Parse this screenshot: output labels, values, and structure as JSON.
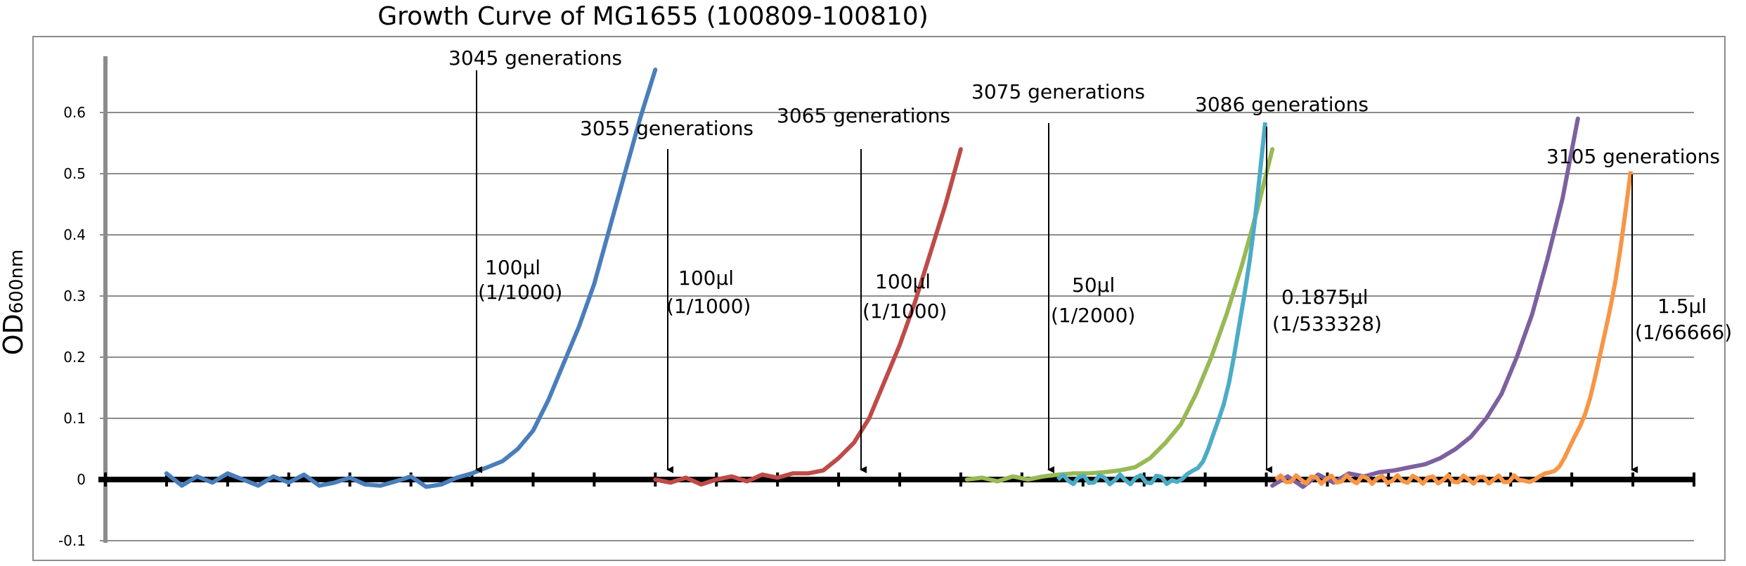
{
  "chart_data": {
    "type": "line",
    "title": "Growth Curve of MG1655 (100809-100810)",
    "ylabel_main": "OD",
    "ylabel_sub": "600nm",
    "ylim": [
      -0.1,
      0.7
    ],
    "yticks": [
      {
        "label": "0.6",
        "value": 0.6
      },
      {
        "label": "0.5",
        "value": 0.5
      },
      {
        "label": "0.4",
        "value": 0.4
      },
      {
        "label": "0.3",
        "value": 0.3
      },
      {
        "label": "0.2",
        "value": 0.2
      },
      {
        "label": "0.1",
        "value": 0.1
      },
      {
        "label": "0",
        "value": 0
      },
      {
        "label": "-0.1",
        "value": -0.1
      }
    ],
    "xlim": [
      0,
      52
    ],
    "x_tick_count": 26,
    "grid": true,
    "series": [
      {
        "color": "#4a7ebb",
        "x": [
          2,
          2.5,
          3,
          3.5,
          4,
          4.5,
          5,
          5.5,
          6,
          6.5,
          7,
          7.5,
          8,
          8.5,
          9,
          9.5,
          10,
          10.5,
          11,
          11.5,
          12,
          12.5,
          13,
          13.5,
          14,
          14.5,
          15,
          15.5,
          16,
          16.5,
          17,
          17.5,
          18
        ],
        "y": [
          0.01,
          -0.01,
          0.005,
          -0.005,
          0.01,
          0,
          -0.01,
          0.005,
          -0.005,
          0.008,
          -0.01,
          -0.005,
          0.003,
          -0.008,
          -0.01,
          -0.003,
          0.005,
          -0.012,
          -0.008,
          0.003,
          0.01,
          0.02,
          0.03,
          0.05,
          0.08,
          0.13,
          0.19,
          0.25,
          0.32,
          0.41,
          0.5,
          0.59,
          0.67
        ]
      },
      {
        "color": "#be4b48",
        "x": [
          18,
          18.5,
          19,
          19.5,
          20,
          20.5,
          21,
          21.5,
          22,
          22.5,
          23,
          23.5,
          24,
          24.5,
          25,
          25.5,
          26,
          26.5,
          27,
          27.5,
          28
        ],
        "y": [
          0,
          -0.005,
          0.003,
          -0.008,
          0,
          0.005,
          -0.003,
          0.008,
          0.003,
          0.01,
          0.01,
          0.015,
          0.035,
          0.06,
          0.1,
          0.16,
          0.22,
          0.29,
          0.37,
          0.45,
          0.54
        ]
      },
      {
        "color": "#98b954",
        "x": [
          28.2,
          28.7,
          29.2,
          29.7,
          30.2,
          30.7,
          31.2,
          31.7,
          32.2,
          32.7,
          33.2,
          33.7,
          34.2,
          34.7,
          35.2,
          35.7,
          36.2,
          36.7,
          37.2,
          37.7,
          38.2
        ],
        "y": [
          0,
          0.003,
          -0.003,
          0.005,
          0,
          0.005,
          0.008,
          0.01,
          0.01,
          0.012,
          0.015,
          0.02,
          0.035,
          0.06,
          0.09,
          0.14,
          0.2,
          0.27,
          0.35,
          0.44,
          0.54
        ]
      },
      {
        "color": "#7d60a0",
        "x": [
          38.2,
          38.7,
          39.2,
          39.7,
          40.2,
          40.7,
          41.2,
          41.7,
          42.2,
          42.7,
          43.2,
          43.7,
          44.2,
          44.7,
          45.2,
          45.7,
          46.2,
          46.7,
          47.2,
          47.7,
          48.2
        ],
        "y": [
          -0.01,
          0.005,
          -0.012,
          0.008,
          -0.005,
          0.01,
          0.005,
          0.012,
          0.015,
          0.02,
          0.025,
          0.035,
          0.05,
          0.07,
          0.1,
          0.14,
          0.2,
          0.27,
          0.36,
          0.46,
          0.59
        ]
      }
    ],
    "annotations": [
      {
        "peak": "3045 generations",
        "volume": "100μl",
        "ratio": "(1/1000)"
      },
      {
        "peak": "3055 generations",
        "volume": "100μl",
        "ratio": "(1/1000)"
      },
      {
        "peak": "3065 generations",
        "volume": "100μl",
        "ratio": "(1/1000)"
      },
      {
        "peak": "3075 generations",
        "volume": "50μl",
        "ratio": "(1/2000)"
      },
      {
        "peak": "3086 generations",
        "volume": "0.1875μl",
        "ratio": "(1/533328)"
      },
      {
        "peak": "3105 generations",
        "volume": "1.5μl",
        "ratio": "(1/66666)"
      }
    ]
  }
}
